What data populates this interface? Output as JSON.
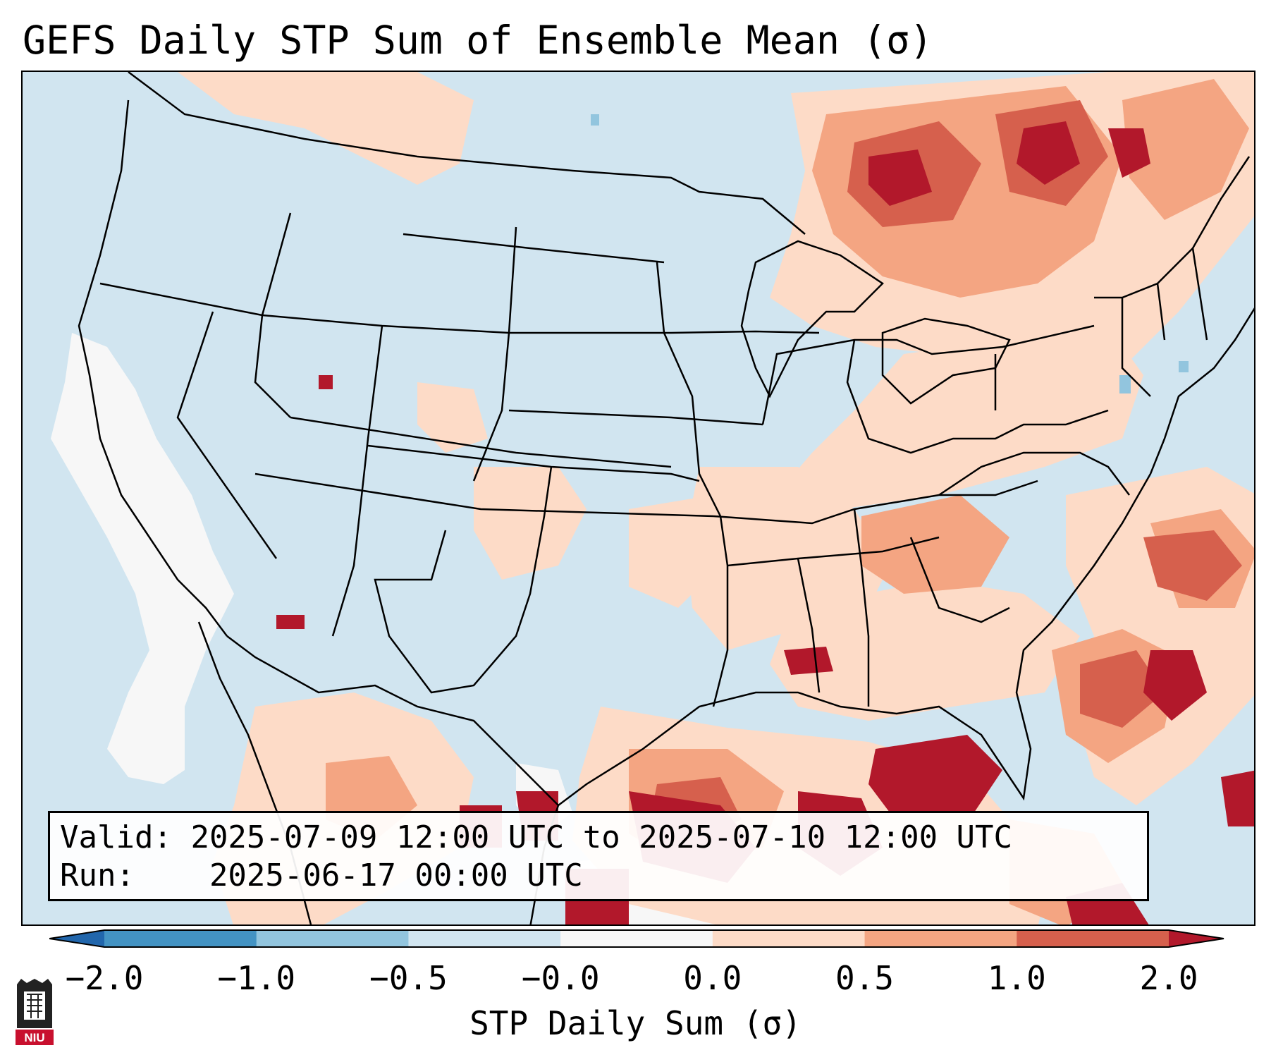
{
  "title": "GEFS Daily STP Sum of Ensemble Mean (σ)",
  "info": {
    "valid_label": "Valid:",
    "valid_value": "2025-07-09 12:00 UTC to 2025-07-10 12:00 UTC",
    "run_label": "Run:",
    "run_value": "2025-06-17 00:00 UTC"
  },
  "colorbar": {
    "title": "STP Daily Sum (σ)",
    "tick_labels": [
      "−2.0",
      "−1.0",
      "−0.5",
      "−0.0",
      "0.0",
      "0.5",
      "1.0",
      "2.0"
    ],
    "bins": [
      {
        "range": "< -2.0",
        "color": "#2166ac"
      },
      {
        "range": "-2.0 to -1.0",
        "color": "#4393c3"
      },
      {
        "range": "-1.0 to -0.5",
        "color": "#92c5de"
      },
      {
        "range": "-0.5 to -0.0",
        "color": "#d1e5f0"
      },
      {
        "range": "-0.0 to 0.0",
        "color": "#f7f7f7"
      },
      {
        "range": "0.0 to 0.5",
        "color": "#fddbc7"
      },
      {
        "range": "0.5 to 1.0",
        "color": "#f4a582"
      },
      {
        "range": "1.0 to 2.0",
        "color": "#d6604d"
      },
      {
        "range": "> 2.0",
        "color": "#b2182b"
      }
    ]
  },
  "logo": {
    "text": "NIU",
    "icon": "niu-university-logo"
  },
  "map": {
    "region": "Contiguous United States, northern Mexico, Gulf of Mexico, Caribbean",
    "colors": {
      "ocean_background": "#d1e5f0",
      "boundaries": "#000000"
    }
  }
}
